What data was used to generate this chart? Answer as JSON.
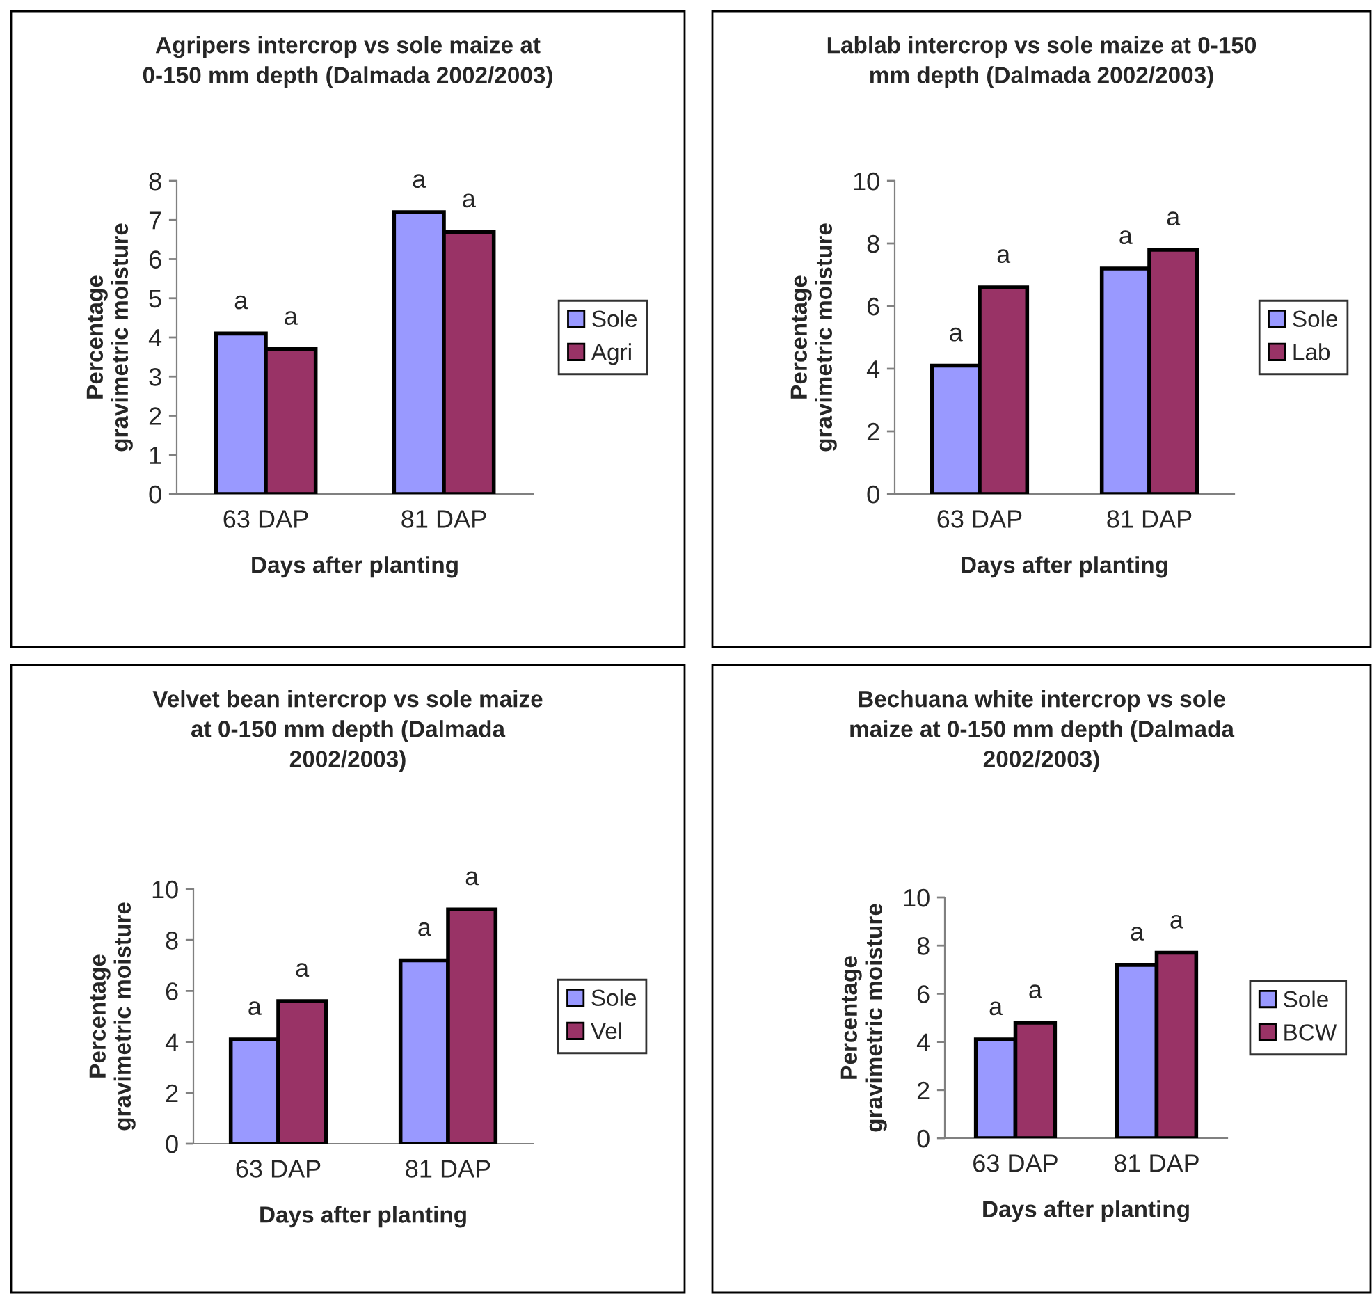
{
  "chart_data": [
    {
      "type": "bar",
      "title": "Agripers intercrop vs sole maize at 0-150 mm depth (Dalmada 2002/2003)",
      "xlabel": "Days after planting",
      "ylabel": "Percentage gravimetric moisture",
      "categories": [
        "63 DAP",
        "81 DAP"
      ],
      "ylim": [
        0,
        8
      ],
      "yticks": [
        0,
        1,
        2,
        3,
        4,
        5,
        6,
        7,
        8
      ],
      "legend": "right",
      "series": [
        {
          "name": "Sole",
          "color": "#9999ff",
          "values": [
            4.1,
            7.2
          ],
          "value_labels": [
            "a",
            "a"
          ]
        },
        {
          "name": "Agri",
          "color": "#993366",
          "values": [
            3.7,
            6.7
          ],
          "value_labels": [
            "a",
            "a"
          ]
        }
      ]
    },
    {
      "type": "bar",
      "title": "Lablab intercrop vs sole maize at 0-150 mm depth (Dalmada 2002/2003)",
      "xlabel": "Days after planting",
      "ylabel": "Percentage gravimetric moisture",
      "categories": [
        "63 DAP",
        "81 DAP"
      ],
      "ylim": [
        0,
        10
      ],
      "yticks": [
        0,
        2,
        4,
        6,
        8,
        10
      ],
      "legend": "right",
      "series": [
        {
          "name": "Sole",
          "color": "#9999ff",
          "values": [
            4.1,
            7.2
          ],
          "value_labels": [
            "a",
            "a"
          ]
        },
        {
          "name": "Lab",
          "color": "#993366",
          "values": [
            6.6,
            7.8
          ],
          "value_labels": [
            "a",
            "a"
          ]
        }
      ]
    },
    {
      "type": "bar",
      "title": "Velvet bean intercrop vs sole maize at 0-150 mm depth (Dalmada 2002/2003)",
      "xlabel": "Days after planting",
      "ylabel": "Percentage gravimetric moisture",
      "categories": [
        "63 DAP",
        "81 DAP"
      ],
      "ylim": [
        0,
        10
      ],
      "yticks": [
        0,
        2,
        4,
        6,
        8,
        10
      ],
      "legend": "right",
      "series": [
        {
          "name": "Sole",
          "color": "#9999ff",
          "values": [
            4.1,
            7.2
          ],
          "value_labels": [
            "a",
            "a"
          ]
        },
        {
          "name": "Vel",
          "color": "#993366",
          "values": [
            5.6,
            9.2
          ],
          "value_labels": [
            "a",
            "a"
          ]
        }
      ]
    },
    {
      "type": "bar",
      "title": "Bechuana white intercrop vs sole maize at 0-150 mm depth (Dalmada 2002/2003)",
      "xlabel": "Days after planting",
      "ylabel": "Percentage gravimetric moisture",
      "categories": [
        "63 DAP",
        "81 DAP"
      ],
      "ylim": [
        0,
        10
      ],
      "yticks": [
        0,
        2,
        4,
        6,
        8,
        10
      ],
      "legend": "right",
      "series": [
        {
          "name": "Sole",
          "color": "#9999ff",
          "values": [
            4.1,
            7.2
          ],
          "value_labels": [
            "a",
            "a"
          ]
        },
        {
          "name": "BCW",
          "color": "#993366",
          "values": [
            4.8,
            7.7
          ],
          "value_labels": [
            "a",
            "a"
          ]
        }
      ]
    }
  ]
}
